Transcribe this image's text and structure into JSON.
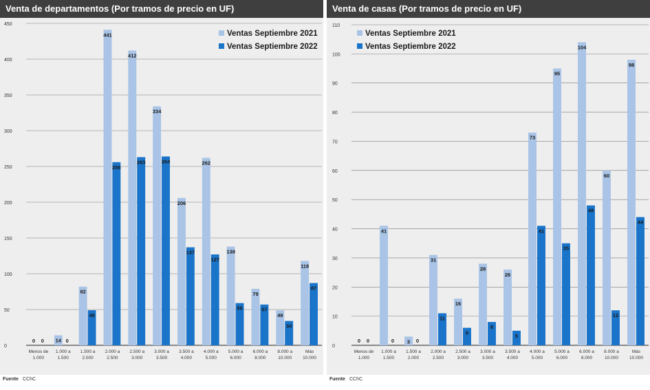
{
  "footer": {
    "label": "Fuente",
    "value": "CChC"
  },
  "chart_data": [
    {
      "type": "bar",
      "title": "Venta de departamentos (Por tramos de precio en UF)",
      "categories": [
        [
          "Menos de",
          "1.000"
        ],
        [
          "1.000 a",
          "1.500"
        ],
        [
          "1.500 a",
          "2.000"
        ],
        [
          "2.000 a",
          "2.500"
        ],
        [
          "2.500 a",
          "3.000"
        ],
        [
          "3.000 a",
          "3.500"
        ],
        [
          "3.500 a",
          "4.000"
        ],
        [
          "4.000 a",
          "5.000"
        ],
        [
          "5.000 a",
          "6.000"
        ],
        [
          "6.000 a",
          "8.000"
        ],
        [
          "8.000 a",
          "10.000"
        ],
        [
          "Más",
          "10.000"
        ]
      ],
      "series": [
        {
          "name": "Ventas Septiembre 2021",
          "color": "#a9c4e6",
          "values": [
            0,
            14,
            82,
            441,
            412,
            334,
            206,
            262,
            138,
            79,
            49,
            118
          ]
        },
        {
          "name": "Ventas Septiembre 2022",
          "color": "#1a74c9",
          "values": [
            0,
            0,
            49,
            256,
            263,
            264,
            137,
            127,
            59,
            57,
            34,
            87
          ]
        }
      ],
      "ylim": [
        0,
        450
      ],
      "yticks": [
        0,
        50,
        100,
        150,
        200,
        250,
        300,
        350,
        400,
        450
      ],
      "grid": true,
      "legend": "top-right"
    },
    {
      "type": "bar",
      "title": "Venta de casas (Por tramos de precio en UF)",
      "categories": [
        [
          "Menos de",
          "1.000"
        ],
        [
          "1.000 a",
          "1.500"
        ],
        [
          "1.500 a",
          "2.000"
        ],
        [
          "2.000 a",
          "2.500"
        ],
        [
          "2.500 a",
          "3.000"
        ],
        [
          "3.000 a",
          "3.500"
        ],
        [
          "3.500 a",
          "4.000"
        ],
        [
          "4.000 a",
          "5.000"
        ],
        [
          "5.000 a",
          "6.000"
        ],
        [
          "6.000 a",
          "8.000"
        ],
        [
          "8.000 a",
          "10.000"
        ],
        [
          "Más",
          "10.000"
        ]
      ],
      "series": [
        {
          "name": "Ventas Septiembre 2021",
          "color": "#a9c4e6",
          "values": [
            0,
            41,
            3,
            31,
            16,
            28,
            26,
            73,
            95,
            104,
            60,
            98
          ]
        },
        {
          "name": "Ventas Septiembre 2022",
          "color": "#1a74c9",
          "values": [
            0,
            0,
            0,
            11,
            6,
            8,
            5,
            41,
            35,
            48,
            12,
            44
          ]
        }
      ],
      "ylim": [
        0,
        110
      ],
      "yticks": [
        0,
        10,
        20,
        30,
        40,
        50,
        60,
        70,
        80,
        90,
        100,
        110
      ],
      "grid": true,
      "legend": "top-left"
    }
  ]
}
